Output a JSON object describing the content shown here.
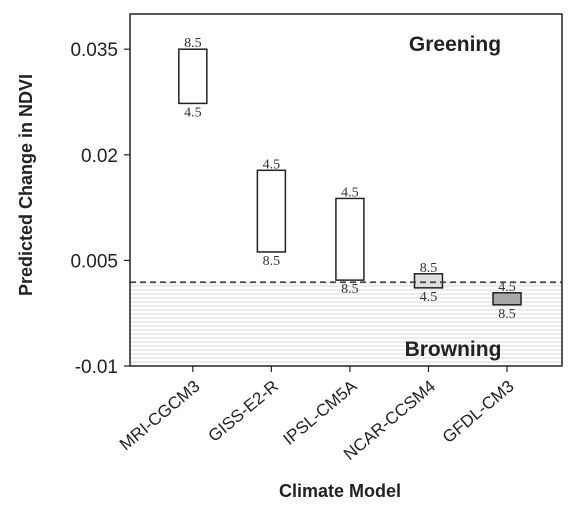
{
  "chart_data": {
    "type": "floating-bar",
    "xlabel": "Climate Model",
    "ylabel": "Predicted Change in NDVI",
    "ylim": [
      -0.01,
      0.04
    ],
    "yticks": [
      "0.035",
      "0.02",
      "0.005",
      "-0.01"
    ],
    "reference_line": {
      "y": 0.0019,
      "style": "dashed"
    },
    "regions": [
      {
        "label": "Greening"
      },
      {
        "label": "Browning"
      }
    ],
    "categories": [
      "MRI-CGCM3",
      "GISS-E2-R",
      "IPSL-CM5A",
      "NCAR-CCSM4",
      "GFDL-CM3"
    ],
    "bars": [
      {
        "model": "MRI-CGCM3",
        "top": 0.035,
        "bottom": 0.0273,
        "top_label": "8.5",
        "bottom_label": "4.5",
        "fill": "#ffffff"
      },
      {
        "model": "GISS-E2-R",
        "top": 0.0178,
        "bottom": 0.0062,
        "top_label": "4.5",
        "bottom_label": "8.5",
        "fill": "#ffffff"
      },
      {
        "model": "IPSL-CM5A",
        "top": 0.0138,
        "bottom": 0.0022,
        "top_label": "4.5",
        "bottom_label": "8.5",
        "fill": "#ffffff"
      },
      {
        "model": "NCAR-CCSM4",
        "top": 0.0031,
        "bottom": 0.0011,
        "top_label": "8.5",
        "bottom_label": "4.5",
        "fill": "#dedede"
      },
      {
        "model": "GFDL-CM3",
        "top": 0.0004,
        "bottom": -0.0013,
        "top_label": "4.5",
        "bottom_label": "8.5",
        "fill": "#a8a8a8"
      }
    ]
  }
}
